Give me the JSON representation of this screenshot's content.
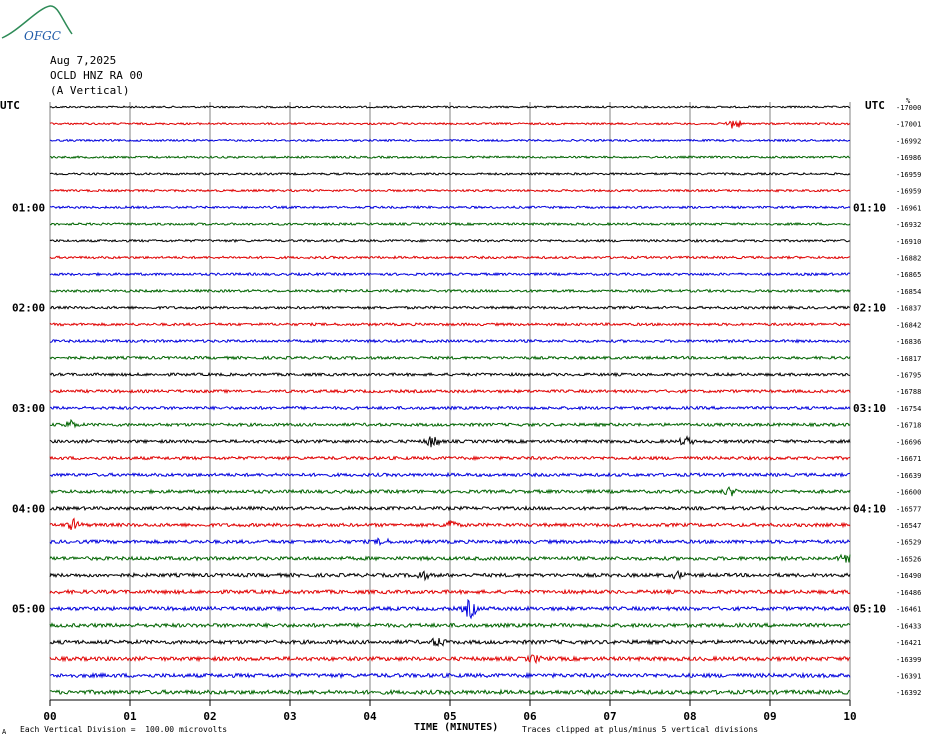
{
  "logo": {
    "text": "OFGC"
  },
  "header": {
    "date": "Aug 7,2025",
    "station": "OCLD HNZ RA 00",
    "component": "(A Vertical)"
  },
  "left_tz": "UTC",
  "right_tz": "UTC",
  "right_tz_suffix": "%",
  "footer": {
    "scale": "Each Vertical Division =  100.00 microvolts",
    "scale_marker": "A",
    "clip": "Traces clipped at plus/minus 5 vertical divisions"
  },
  "colors": {
    "black": "#000000",
    "red": "#e00000",
    "blue": "#0000dd",
    "green": "#006400",
    "grid": "#808080"
  },
  "chart_data": {
    "type": "line",
    "title": "Aug 7,2025",
    "xlabel": "TIME (MINUTES)",
    "ylabel": "",
    "xlim": [
      0,
      10
    ],
    "x_ticks": [
      "00",
      "01",
      "02",
      "03",
      "04",
      "05",
      "06",
      "07",
      "08",
      "09",
      "10"
    ],
    "minutes_per_line": 10,
    "trace_colors": [
      "black",
      "red",
      "blue",
      "green"
    ],
    "left_time_labels": [
      {
        "row": 6,
        "label": "01:00"
      },
      {
        "row": 12,
        "label": "02:00"
      },
      {
        "row": 18,
        "label": "03:00"
      },
      {
        "row": 24,
        "label": "04:00"
      },
      {
        "row": 30,
        "label": "05:00"
      }
    ],
    "right_time_labels": [
      {
        "row": 6,
        "label": "01:10"
      },
      {
        "row": 12,
        "label": "02:10"
      },
      {
        "row": 18,
        "label": "03:10"
      },
      {
        "row": 24,
        "label": "04:10"
      },
      {
        "row": 30,
        "label": "05:10"
      }
    ],
    "trace_offsets": [
      -17000,
      -17001,
      -16992,
      -16986,
      -16959,
      -16959,
      -16961,
      -16932,
      -16910,
      -16882,
      -16865,
      -16854,
      -16837,
      -16842,
      -16836,
      -16817,
      -16795,
      -16788,
      -16754,
      -16718,
      -16696,
      -16671,
      -16639,
      -16600,
      -16577,
      -16547,
      -16529,
      -16526,
      -16490,
      -16486,
      -16461,
      -16433,
      -16421,
      -16399,
      -16391,
      -16392
    ],
    "events": [
      {
        "row": 1,
        "minute": 8.55,
        "amp": 6
      },
      {
        "row": 19,
        "minute": 0.25,
        "amp": 4
      },
      {
        "row": 20,
        "minute": 4.78,
        "amp": 6
      },
      {
        "row": 20,
        "minute": 7.95,
        "amp": 4
      },
      {
        "row": 23,
        "minute": 8.5,
        "amp": 4
      },
      {
        "row": 25,
        "minute": 5.0,
        "amp": 5
      },
      {
        "row": 25,
        "minute": 0.3,
        "amp": 5
      },
      {
        "row": 26,
        "minute": 4.15,
        "amp": 3
      },
      {
        "row": 27,
        "minute": 9.95,
        "amp": 4
      },
      {
        "row": 28,
        "minute": 4.65,
        "amp": 4
      },
      {
        "row": 28,
        "minute": 7.85,
        "amp": 3
      },
      {
        "row": 30,
        "minute": 5.25,
        "amp": 9
      },
      {
        "row": 32,
        "minute": 4.85,
        "amp": 4
      },
      {
        "row": 33,
        "minute": 6.05,
        "amp": 3
      }
    ]
  }
}
